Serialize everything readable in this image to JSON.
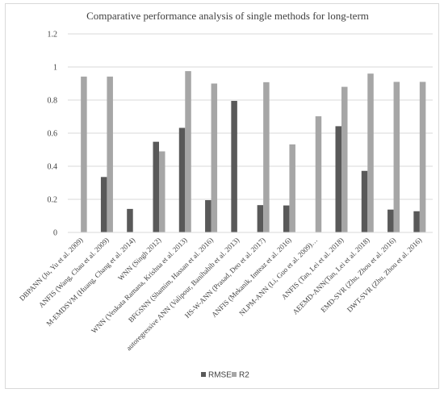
{
  "chart_data": {
    "type": "bar",
    "title": "Comparative performance analysis of single methods for long-term",
    "xlabel": "",
    "ylabel": "",
    "ylim": [
      0,
      1.2
    ],
    "yticks": [
      "0",
      "0.2",
      "0.4",
      "0.6",
      "0.8",
      "1",
      "1.2"
    ],
    "grid": true,
    "legend_position": "bottom",
    "categories": [
      "DBPANN (Ju, Yu et al. 2009)",
      "ANFIS (Wang, Chau et al. 2009)",
      "M-EMDSVM (Huang, Chang et al. 2014)",
      "WNN (Singh 2012)",
      "WNN (Venkata Ramana, Krishna et al. 2013)",
      "BFGSNN (Shamim, Hassan et al. 2016)",
      "autoregressive ANN (Valipour, Banihabib et al. 2013)",
      "HS-W-ANN (Prasad, Deo et al. 2017)",
      "ANFIS (Mekanik, Imteaz et al. 2016)",
      "NLPM-ANN (Li, Guo et al. 2009)…",
      "ANFIS (Tan, Lei et al. 2018)",
      "AEEMD-ANN(Tan, Lei et al. 2018)",
      "EMD-SVR (Zhu, Zhou et al. 2016)",
      "DWT-SVR (Zhu, Zhou et al. 2016)"
    ],
    "series": [
      {
        "name": "RMSE",
        "color": "#595959",
        "values": [
          null,
          0.335,
          0.142,
          0.548,
          0.632,
          0.195,
          0.795,
          0.165,
          0.163,
          null,
          0.642,
          0.372,
          0.138,
          0.128
        ]
      },
      {
        "name": "R2",
        "color": "#a6a6a6",
        "values": [
          0.942,
          0.942,
          null,
          0.49,
          0.975,
          0.9,
          null,
          0.908,
          0.532,
          0.702,
          0.88,
          0.96,
          0.91,
          0.91
        ]
      }
    ]
  }
}
